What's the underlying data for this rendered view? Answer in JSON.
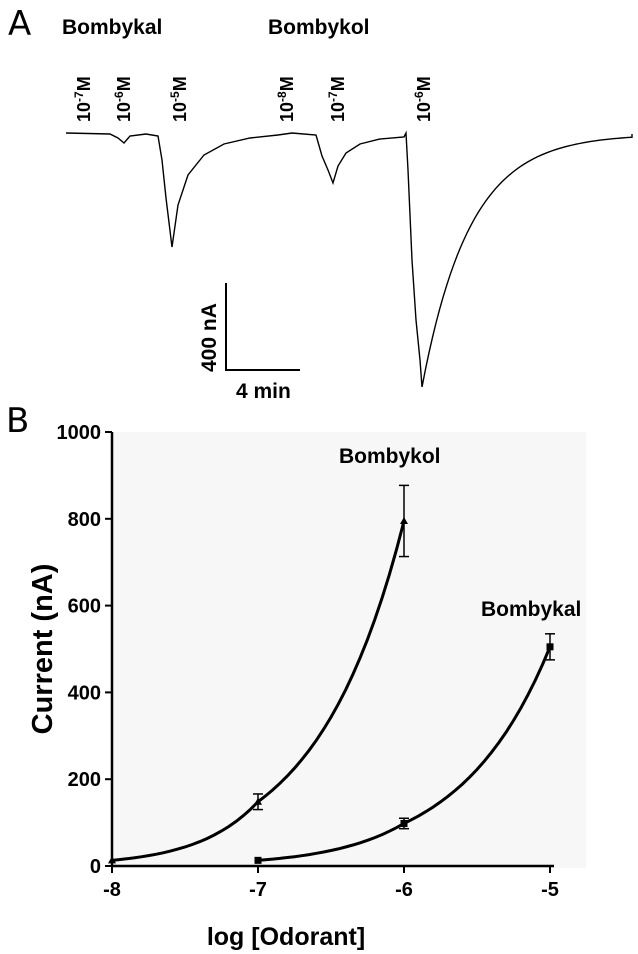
{
  "panel_a": {
    "letter": "A",
    "compound_labels": [
      "Bombykal",
      "Bombykol"
    ],
    "concentrations": [
      {
        "base": "10",
        "exp": "-7",
        "unit": "M",
        "compound": "Bombykal"
      },
      {
        "base": "10",
        "exp": "-6",
        "unit": "M",
        "compound": "Bombykal"
      },
      {
        "base": "10",
        "exp": "-5",
        "unit": "M",
        "compound": "Bombykal"
      },
      {
        "base": "10",
        "exp": "-8",
        "unit": "M",
        "compound": "Bombykol"
      },
      {
        "base": "10",
        "exp": "-7",
        "unit": "M",
        "compound": "Bombykol"
      },
      {
        "base": "10",
        "exp": "-6",
        "unit": "M",
        "compound": "Bombykol"
      }
    ],
    "scale_bar": {
      "vertical_label": "400 nA",
      "horizontal_label": "4 min"
    }
  },
  "panel_b": {
    "letter": "B"
  },
  "chart_data": {
    "type": "line",
    "xlabel": "log [Odorant]",
    "ylabel": "Current (nA)",
    "xlim": [
      -8,
      -5
    ],
    "ylim": [
      0,
      1000
    ],
    "xticks": [
      -8,
      -7,
      -6,
      -5
    ],
    "xtick_labels": [
      "-8",
      "-7",
      "-6",
      "-5"
    ],
    "yticks": [
      0,
      200,
      400,
      600,
      800,
      1000
    ],
    "ytick_labels": [
      "0",
      "200",
      "400",
      "600",
      "800",
      "1000"
    ],
    "grid": false,
    "series": [
      {
        "name": "Bombykol",
        "marker": "triangle",
        "points": [
          {
            "x": -8,
            "y": 13,
            "err": 0
          },
          {
            "x": -7,
            "y": 148,
            "err": 18
          },
          {
            "x": -6,
            "y": 795,
            "err": 82
          }
        ]
      },
      {
        "name": "Bombykal",
        "marker": "square",
        "points": [
          {
            "x": -7,
            "y": 13,
            "err": 0
          },
          {
            "x": -6,
            "y": 98,
            "err": 12
          },
          {
            "x": -5,
            "y": 505,
            "err": 30
          }
        ]
      }
    ]
  }
}
